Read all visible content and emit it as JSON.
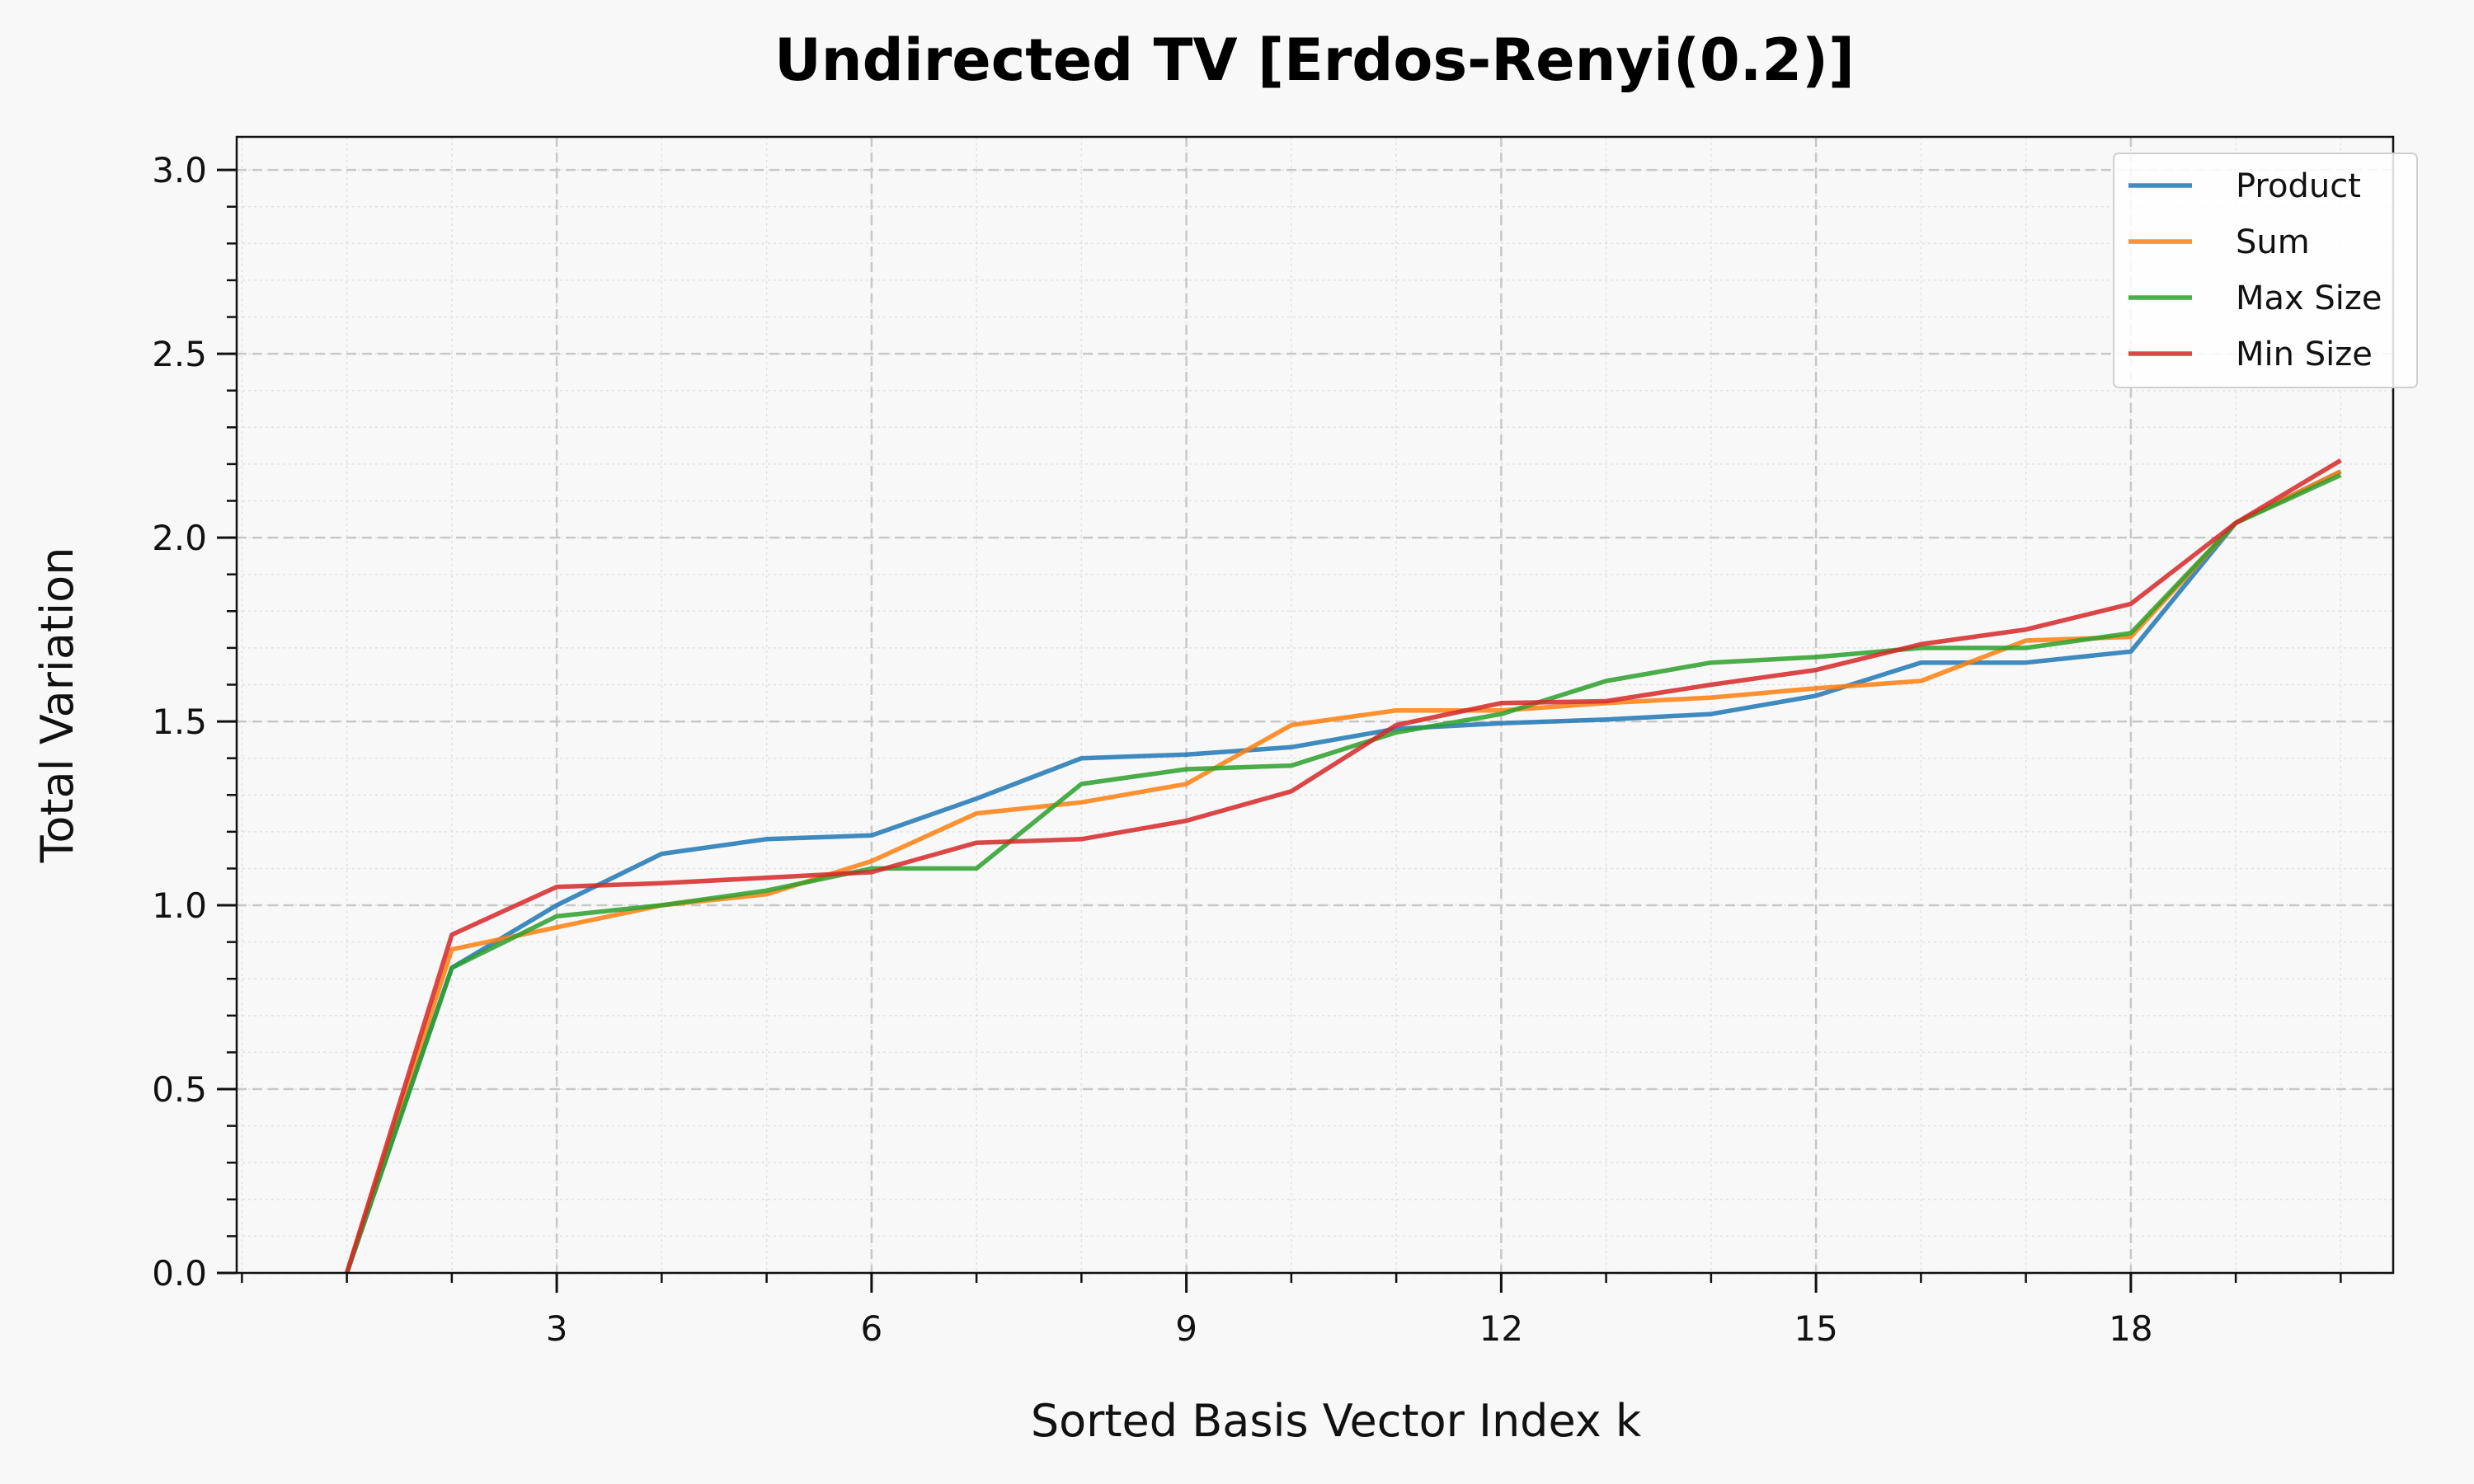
{
  "chart_data": {
    "type": "line",
    "title": "Undirected TV [Erdos-Renyi(0.2)]",
    "xlabel": "Sorted Basis Vector Index k",
    "ylabel": "Total Variation",
    "xlim": [
      -0.05,
      20.5
    ],
    "ylim": [
      0,
      3.09
    ],
    "xticks": [
      3,
      6,
      9,
      12,
      15,
      18
    ],
    "xtick_labels": [
      "3",
      "6",
      "9",
      "12",
      "15",
      "18"
    ],
    "yticks": [
      0.0,
      0.5,
      1.0,
      1.5,
      2.0,
      2.5,
      3.0
    ],
    "ytick_labels": [
      "0.0",
      "0.5",
      "1.0",
      "1.5",
      "2.0",
      "2.5",
      "3.0"
    ],
    "grid": true,
    "legend_position": "top-right",
    "x": [
      1,
      2,
      3,
      4,
      5,
      6,
      7,
      8,
      9,
      10,
      11,
      12,
      13,
      14,
      15,
      16,
      17,
      18,
      19,
      20
    ],
    "series": [
      {
        "name": "Product",
        "color": "#1f77b4",
        "values": [
          0.0,
          0.83,
          1.0,
          1.14,
          1.18,
          1.19,
          1.29,
          1.4,
          1.41,
          1.43,
          1.48,
          1.495,
          1.505,
          1.52,
          1.57,
          1.66,
          1.66,
          1.69,
          2.04,
          2.18
        ]
      },
      {
        "name": "Sum",
        "color": "#ff7f0e",
        "values": [
          0.0,
          0.88,
          0.94,
          1.0,
          1.03,
          1.12,
          1.25,
          1.28,
          1.33,
          1.49,
          1.53,
          1.53,
          1.55,
          1.565,
          1.59,
          1.61,
          1.72,
          1.73,
          2.04,
          2.18
        ]
      },
      {
        "name": "Max Size",
        "color": "#2ca02c",
        "values": [
          0.0,
          0.83,
          0.97,
          1.0,
          1.04,
          1.1,
          1.1,
          1.33,
          1.37,
          1.38,
          1.47,
          1.52,
          1.61,
          1.66,
          1.675,
          1.7,
          1.7,
          1.74,
          2.04,
          2.17
        ]
      },
      {
        "name": "Min Size",
        "color": "#d62728",
        "values": [
          0.0,
          0.92,
          1.05,
          1.06,
          1.075,
          1.09,
          1.17,
          1.18,
          1.23,
          1.31,
          1.49,
          1.55,
          1.555,
          1.6,
          1.64,
          1.71,
          1.75,
          1.82,
          2.04,
          2.21
        ]
      }
    ]
  }
}
